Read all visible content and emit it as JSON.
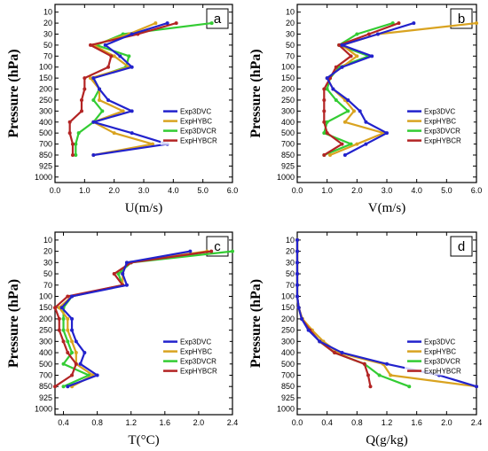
{
  "pressure_levels": [
    "10",
    "20",
    "30",
    "50",
    "70",
    "100",
    "150",
    "200",
    "250",
    "300",
    "400",
    "500",
    "700",
    "850",
    "925",
    "1000"
  ],
  "y_axis_label": "Pressure (hPa)",
  "colors": {
    "Exp3DVC": "#2222cc",
    "ExpHYBC": "#d9a320",
    "Exp3DVCR": "#33cc33",
    "ExpHYBCR": "#b32424"
  },
  "chart_data": [
    {
      "panel": "a",
      "type": "line",
      "xlabel": "U(m/s)",
      "ylabel": "Pressure (hPa)",
      "xlim": [
        0,
        6
      ],
      "xticks": [
        "0.0",
        "1.0",
        "2.0",
        "3.0",
        "4.0",
        "5.0",
        "6.0"
      ],
      "legend_position": "right",
      "series": [
        {
          "name": "Exp3DVC",
          "values": [
            null,
            3.8,
            2.6,
            1.7,
            2.2,
            2.6,
            1.3,
            1.5,
            1.8,
            2.6,
            1.3,
            2.6,
            3.8,
            1.3,
            null,
            null
          ]
        },
        {
          "name": "ExpHYBC",
          "values": [
            null,
            3.4,
            2.5,
            1.3,
            2.0,
            2.5,
            1.2,
            1.5,
            1.5,
            2.3,
            1.3,
            2.0,
            3.3,
            1.3,
            null,
            null
          ]
        },
        {
          "name": "Exp3DVCR",
          "values": [
            null,
            5.3,
            2.3,
            1.4,
            2.5,
            2.4,
            1.3,
            1.5,
            1.3,
            1.6,
            1.3,
            0.8,
            0.7,
            0.7,
            null,
            null
          ]
        },
        {
          "name": "ExpHYBCR",
          "values": [
            null,
            4.1,
            2.8,
            1.2,
            1.9,
            1.8,
            1.0,
            1.0,
            0.9,
            0.9,
            0.5,
            0.5,
            0.6,
            0.6,
            null,
            null
          ]
        }
      ]
    },
    {
      "panel": "b",
      "type": "line",
      "xlabel": "V(m/s)",
      "ylabel": "Pressure (hPa)",
      "xlim": [
        0,
        6
      ],
      "xticks": [
        "0.0",
        "1.0",
        "2.0",
        "3.0",
        "4.0",
        "5.0",
        "6.0"
      ],
      "legend_position": "right",
      "series": [
        {
          "name": "Exp3DVC",
          "values": [
            null,
            3.9,
            2.7,
            1.5,
            2.5,
            1.5,
            1.0,
            1.2,
            1.7,
            2.1,
            2.3,
            3.0,
            2.3,
            1.6,
            null,
            null
          ]
        },
        {
          "name": "ExpHYBC",
          "values": [
            null,
            6.0,
            2.7,
            1.5,
            2.0,
            1.5,
            1.0,
            1.2,
            1.6,
            1.9,
            1.6,
            2.9,
            2.0,
            1.1,
            null,
            null
          ]
        },
        {
          "name": "Exp3DVCR",
          "values": [
            null,
            3.2,
            2.0,
            1.4,
            2.4,
            1.4,
            1.1,
            1.0,
            1.3,
            1.7,
            1.0,
            0.9,
            1.8,
            0.9,
            null,
            null
          ]
        },
        {
          "name": "ExpHYBCR",
          "values": [
            null,
            3.4,
            2.4,
            1.4,
            1.8,
            1.3,
            1.1,
            0.9,
            0.9,
            0.9,
            0.9,
            1.0,
            1.5,
            0.9,
            null,
            null
          ]
        }
      ]
    },
    {
      "panel": "c",
      "type": "line",
      "xlabel": "T(°C)",
      "ylabel": "Pressure (hPa)",
      "xlim": [
        0.3,
        2.4
      ],
      "xticks": [
        "0.4",
        "0.8",
        "1.2",
        "1.6",
        "2.0",
        "2.4"
      ],
      "legend_position": "right",
      "series": [
        {
          "name": "Exp3DVC",
          "values": [
            null,
            1.9,
            1.15,
            1.1,
            1.15,
            0.5,
            0.38,
            0.5,
            0.5,
            0.55,
            0.65,
            0.6,
            0.8,
            0.45,
            null,
            null
          ]
        },
        {
          "name": "ExpHYBC",
          "values": [
            null,
            2.1,
            1.15,
            1.1,
            1.1,
            0.5,
            0.35,
            0.45,
            0.45,
            0.5,
            0.55,
            0.55,
            0.75,
            0.5,
            null,
            null
          ]
        },
        {
          "name": "Exp3DVCR",
          "values": [
            null,
            2.4,
            1.2,
            1.05,
            1.1,
            0.5,
            0.4,
            0.4,
            0.4,
            0.45,
            0.5,
            0.4,
            0.7,
            0.4,
            null,
            null
          ]
        },
        {
          "name": "ExpHYBCR",
          "values": [
            null,
            2.15,
            1.2,
            1.0,
            1.1,
            0.45,
            0.3,
            0.35,
            0.35,
            0.4,
            0.45,
            0.55,
            0.5,
            0.3,
            null,
            null
          ]
        }
      ]
    },
    {
      "panel": "d",
      "type": "line",
      "xlabel": "Q(g/kg)",
      "ylabel": "Pressure (hPa)",
      "xlim": [
        0,
        2.4
      ],
      "xticks": [
        "0.0",
        "0.4",
        "0.8",
        "1.2",
        "1.6",
        "2.0",
        "2.4"
      ],
      "legend_position": "right",
      "series": [
        {
          "name": "Exp3DVC",
          "values": [
            0.0,
            0.0,
            0.0,
            0.0,
            0.0,
            0.0,
            0.02,
            0.06,
            0.15,
            0.3,
            0.6,
            1.2,
            1.9,
            2.4,
            null,
            null
          ]
        },
        {
          "name": "ExpHYBC",
          "values": [
            0.0,
            0.0,
            0.0,
            0.0,
            0.0,
            0.0,
            0.02,
            0.07,
            0.2,
            0.35,
            0.55,
            1.15,
            1.25,
            2.4,
            null,
            null
          ]
        },
        {
          "name": "Exp3DVCR",
          "values": [
            0.0,
            0.0,
            0.0,
            0.0,
            0.0,
            0.0,
            0.02,
            0.06,
            0.17,
            0.3,
            0.5,
            0.9,
            1.1,
            1.5,
            null,
            null
          ]
        },
        {
          "name": "ExpHYBCR",
          "values": [
            0.0,
            0.0,
            0.0,
            0.0,
            0.0,
            0.0,
            0.02,
            0.06,
            0.17,
            0.3,
            0.5,
            0.9,
            0.95,
            0.98,
            null,
            null
          ]
        }
      ]
    }
  ]
}
